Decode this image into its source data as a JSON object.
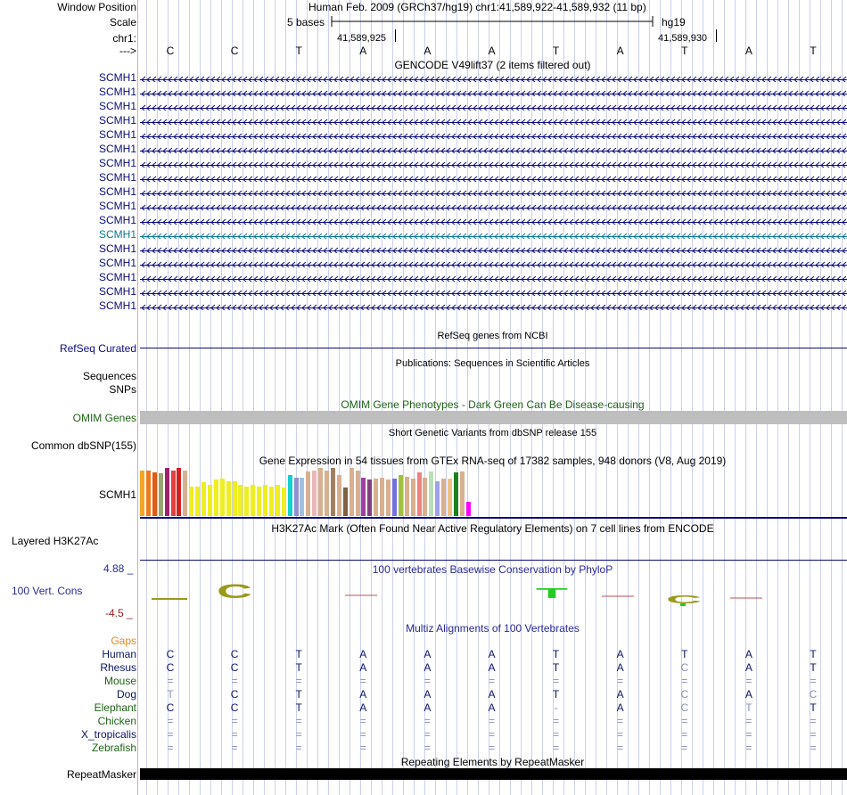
{
  "header": {
    "window_position_label": "Window Position",
    "window_position_value": "Human Feb. 2009 (GRCh37/hg19)   chr1:41,589,922-41,589,932 (11 bp)",
    "scale_label": "Scale",
    "scale_text": "5 bases",
    "scale_db": "hg19",
    "chrom_label": "chr1:",
    "pos_left": "41,589,925",
    "pos_right": "41,589,930",
    "strand_label": "--->"
  },
  "sequence": [
    "C",
    "C",
    "T",
    "A",
    "A",
    "A",
    "T",
    "A",
    "T",
    "A",
    "T"
  ],
  "gencode": {
    "title": "GENCODE V49lift37 (2 items filtered out)",
    "gene_names": [
      "SCMH1",
      "SCMH1",
      "SCMH1",
      "SCMH1",
      "SCMH1",
      "SCMH1",
      "SCMH1",
      "SCMH1",
      "SCMH1",
      "SCMH1",
      "SCMH1",
      "SCMH1",
      "SCMH1",
      "SCMH1",
      "SCMH1",
      "SCMH1",
      "SCMH1"
    ],
    "highlight_index": 11
  },
  "refseq": {
    "label": "RefSeq Curated",
    "title": "RefSeq genes from NCBI"
  },
  "publications": {
    "label1": "Sequences",
    "label2": "SNPs",
    "title": "Publications: Sequences in Scientific Articles"
  },
  "omim": {
    "label": "OMIM Genes",
    "title": "OMIM Gene Phenotypes - Dark Green Can Be Disease-causing"
  },
  "dbsnp": {
    "label": "Common dbSNP(155)",
    "title": "Short Genetic Variants from dbSNP release 155"
  },
  "gtex": {
    "label": "SCMH1",
    "title": "Gene Expression in 54 tissues from GTEx RNA-seq of 17382 samples, 948 donors (V8, Aug 2019)",
    "bars": [
      {
        "v": 0.95,
        "c": "#f5a623"
      },
      {
        "v": 0.95,
        "c": "#ec7a1e"
      },
      {
        "v": 0.9,
        "c": "#e05c14"
      },
      {
        "v": 0.88,
        "c": "#9aa372"
      },
      {
        "v": 1.0,
        "c": "#a0226f"
      },
      {
        "v": 0.95,
        "c": "#e04040"
      },
      {
        "v": 1.0,
        "c": "#d42020"
      },
      {
        "v": 0.95,
        "c": "#d8b090"
      },
      {
        "v": 0.62,
        "c": "#eeee20"
      },
      {
        "v": 0.62,
        "c": "#eeee20"
      },
      {
        "v": 0.7,
        "c": "#eeee20"
      },
      {
        "v": 0.65,
        "c": "#eeee20"
      },
      {
        "v": 0.75,
        "c": "#eeee20"
      },
      {
        "v": 0.77,
        "c": "#eeee20"
      },
      {
        "v": 0.72,
        "c": "#eeee20"
      },
      {
        "v": 0.72,
        "c": "#eeee20"
      },
      {
        "v": 0.65,
        "c": "#eeee20"
      },
      {
        "v": 0.62,
        "c": "#eeee20"
      },
      {
        "v": 0.65,
        "c": "#eeee20"
      },
      {
        "v": 0.62,
        "c": "#eeee20"
      },
      {
        "v": 0.65,
        "c": "#eeee20"
      },
      {
        "v": 0.62,
        "c": "#eeee20"
      },
      {
        "v": 0.65,
        "c": "#eeee20"
      },
      {
        "v": 0.6,
        "c": "#eeee20"
      },
      {
        "v": 0.85,
        "c": "#10d0d0"
      },
      {
        "v": 0.8,
        "c": "#9090d0"
      },
      {
        "v": 0.8,
        "c": "#a0c0e0"
      },
      {
        "v": 0.93,
        "c": "#d8b090"
      },
      {
        "v": 0.95,
        "c": "#e8b8b8"
      },
      {
        "v": 1.0,
        "c": "#d8b090"
      },
      {
        "v": 0.95,
        "c": "#d8b090"
      },
      {
        "v": 1.0,
        "c": "#a08060"
      },
      {
        "v": 0.85,
        "c": "#d8b090"
      },
      {
        "v": 0.6,
        "c": "#806040"
      },
      {
        "v": 1.0,
        "c": "#d8b090"
      },
      {
        "v": 0.95,
        "c": "#d8b090"
      },
      {
        "v": 0.8,
        "c": "#a040a0"
      },
      {
        "v": 0.75,
        "c": "#804080"
      },
      {
        "v": 0.78,
        "c": "#d8b090"
      },
      {
        "v": 0.8,
        "c": "#d8b090"
      },
      {
        "v": 0.75,
        "c": "#d8b090"
      },
      {
        "v": 0.78,
        "c": "#7070e0"
      },
      {
        "v": 0.85,
        "c": "#a0c040"
      },
      {
        "v": 0.82,
        "c": "#d8b090"
      },
      {
        "v": 0.78,
        "c": "#d8b090"
      },
      {
        "v": 0.9,
        "c": "#f08080"
      },
      {
        "v": 0.8,
        "c": "#d8b090"
      },
      {
        "v": 0.92,
        "c": "#b8e0b8"
      },
      {
        "v": 0.72,
        "c": "#a0a0f0"
      },
      {
        "v": 0.78,
        "c": "#d8b090"
      },
      {
        "v": 0.77,
        "c": "#f0c080"
      },
      {
        "v": 0.9,
        "c": "#208020"
      },
      {
        "v": 0.92,
        "c": "#d8b090"
      },
      {
        "v": 0.3,
        "c": "#ff00ff"
      }
    ]
  },
  "h3k27ac": {
    "label": "Layered H3K27Ac",
    "title": "H3K27Ac Mark (Often Found Near Active Regulatory Elements) on 7 cell lines from ENCODE"
  },
  "phylop": {
    "label": "100 Vert. Cons",
    "max_label": "4.88 _",
    "min_label": "-4.5 _",
    "title": "100 vertebrates Basewise Conservation by PhyloP"
  },
  "multiz": {
    "title": "Multiz Alignments of 100 Vertebrates",
    "gaps_label": "Gaps",
    "species": [
      {
        "name": "Human",
        "color": "#0a1464",
        "bases": [
          "C",
          "C",
          "T",
          "A",
          "A",
          "A",
          "T",
          "A",
          "T",
          "A",
          "T"
        ],
        "shade": [
          0,
          0,
          0,
          0,
          0,
          0,
          0,
          0,
          0,
          0,
          0
        ]
      },
      {
        "name": "Rhesus",
        "color": "#0a1464",
        "bases": [
          "C",
          "C",
          "T",
          "A",
          "A",
          "A",
          "T",
          "A",
          "C",
          "A",
          "T"
        ],
        "shade": [
          0,
          0,
          0,
          0,
          0,
          0,
          0,
          0,
          1,
          0,
          0
        ]
      },
      {
        "name": "Mouse",
        "color": "#1e6414",
        "bases": [
          "=",
          "=",
          "=",
          "=",
          "=",
          "=",
          "=",
          "=",
          "=",
          "=",
          "="
        ],
        "shade": [
          1,
          1,
          1,
          1,
          1,
          1,
          1,
          1,
          1,
          1,
          1
        ]
      },
      {
        "name": "Dog",
        "color": "#0a1464",
        "bases": [
          "T",
          "C",
          "T",
          "A",
          "A",
          "A",
          "T",
          "A",
          "C",
          "A",
          "C"
        ],
        "shade": [
          1,
          0,
          0,
          0,
          0,
          0,
          0,
          0,
          1,
          0,
          1
        ]
      },
      {
        "name": "Elephant",
        "color": "#1e6414",
        "bases": [
          "C",
          "C",
          "T",
          "A",
          "A",
          "A",
          "-",
          "A",
          "C",
          "T",
          "T"
        ],
        "shade": [
          0,
          0,
          0,
          0,
          0,
          0,
          1,
          0,
          1,
          1,
          0
        ]
      },
      {
        "name": "Chicken",
        "color": "#1e6414",
        "bases": [
          "=",
          "=",
          "=",
          "=",
          "=",
          "=",
          "=",
          "=",
          "=",
          "=",
          "="
        ],
        "shade": [
          1,
          1,
          1,
          1,
          1,
          1,
          1,
          1,
          1,
          1,
          1
        ]
      },
      {
        "name": "X_tropicalis",
        "color": "#0a1464",
        "bases": [
          "=",
          "=",
          "=",
          "=",
          "=",
          "=",
          "=",
          "=",
          "=",
          "=",
          "="
        ],
        "shade": [
          1,
          1,
          1,
          1,
          1,
          1,
          1,
          1,
          1,
          1,
          1
        ]
      },
      {
        "name": "Zebrafish",
        "color": "#1e6414",
        "bases": [
          "=",
          "=",
          "=",
          "=",
          "=",
          "=",
          "=",
          "=",
          "=",
          "=",
          "="
        ],
        "shade": [
          1,
          1,
          1,
          1,
          1,
          1,
          1,
          1,
          1,
          1,
          1
        ]
      }
    ]
  },
  "repeatmasker": {
    "label": "RepeatMasker",
    "title": "Repeating Elements by RepeatMasker"
  },
  "colors": {
    "gene_navy": "#0c0c78",
    "gene_highlight": "#0c7896",
    "omim_bar": "#bebebe",
    "phylop_label": "#2a2a96",
    "red_label": "#961e1e"
  }
}
